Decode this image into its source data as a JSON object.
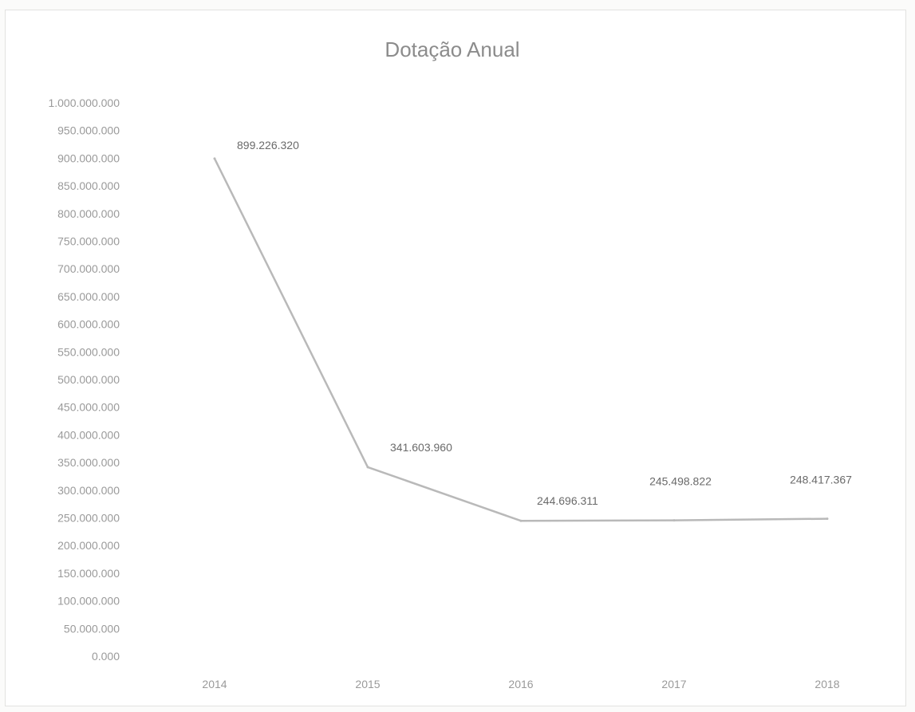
{
  "chart_data": {
    "type": "line",
    "title": "Dotação Anual",
    "xlabel": "",
    "ylabel": "",
    "categories": [
      "2014",
      "2015",
      "2016",
      "2017",
      "2018"
    ],
    "series": [
      {
        "name": "",
        "values": [
          899226320,
          341603960,
          244696311,
          245498822,
          248417367
        ],
        "labels": [
          "899.226.320",
          "341.603.960",
          "244.696.311",
          "245.498.822",
          "248.417.367"
        ]
      }
    ],
    "ylim": [
      0,
      1000000000
    ],
    "yticks": [
      0,
      50000000,
      100000000,
      150000000,
      200000000,
      250000000,
      300000000,
      350000000,
      400000000,
      450000000,
      500000000,
      550000000,
      600000000,
      650000000,
      700000000,
      750000000,
      800000000,
      850000000,
      900000000,
      950000000,
      1000000000
    ],
    "ytick_labels": [
      "0.000",
      "50.000.000",
      "100.000.000",
      "150.000.000",
      "200.000.000",
      "250.000.000",
      "300.000.000",
      "350.000.000",
      "400.000.000",
      "450.000.000",
      "500.000.000",
      "550.000.000",
      "600.000.000",
      "650.000.000",
      "700.000.000",
      "750.000.000",
      "800.000.000",
      "850.000.000",
      "900.000.000",
      "950.000.000",
      "1.000.000.000"
    ],
    "grid": false,
    "legend": "none",
    "colors": {
      "line": "#b9b9b9",
      "text": "#9a9a9a",
      "title": "#8c8c8c"
    }
  }
}
